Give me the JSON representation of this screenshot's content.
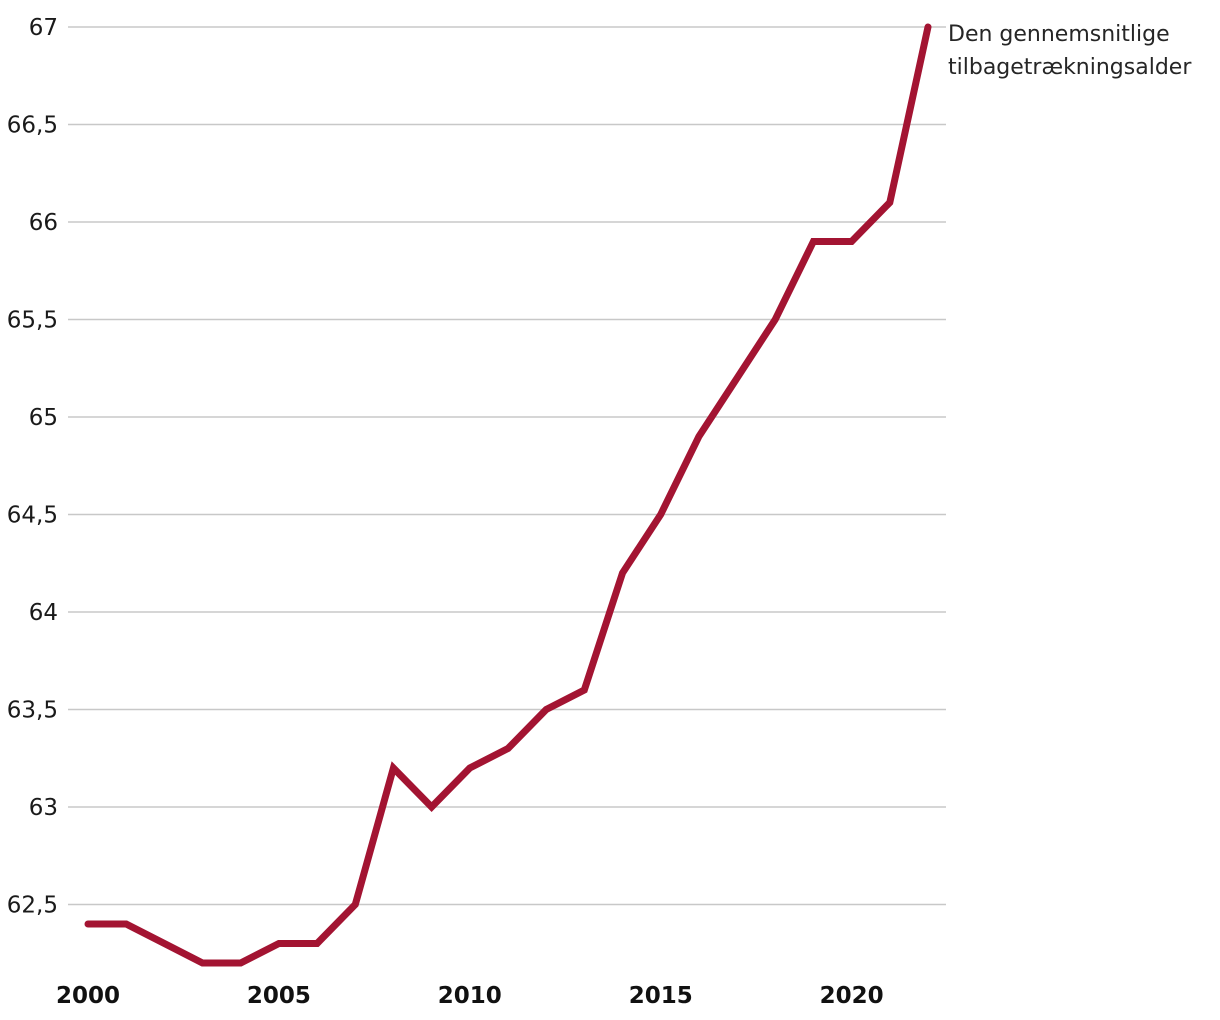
{
  "chart_data": {
    "type": "line",
    "title": "",
    "annotation_lines": [
      "Den gennemsnitlige",
      "tilbagetrækningsalder"
    ],
    "series": [
      {
        "name": "Den gennemsnitlige tilbagetrækningsalder",
        "values": [
          62.4,
          62.4,
          62.3,
          62.2,
          62.2,
          62.3,
          62.3,
          62.5,
          63.2,
          63.0,
          63.2,
          63.3,
          63.5,
          63.6,
          64.2,
          64.5,
          64.9,
          65.2,
          65.5,
          65.9,
          65.9,
          66.1,
          67.0
        ]
      }
    ],
    "x": [
      2000,
      2001,
      2002,
      2003,
      2004,
      2005,
      2006,
      2007,
      2008,
      2009,
      2010,
      2011,
      2012,
      2013,
      2014,
      2015,
      2016,
      2017,
      2018,
      2019,
      2020,
      2021,
      2022
    ],
    "x_ticks": [
      2000,
      2005,
      2010,
      2015,
      2020
    ],
    "x_tick_labels": [
      "2000",
      "2005",
      "2010",
      "2015",
      "2020"
    ],
    "y_ticks": [
      62.5,
      63,
      63.5,
      64,
      64.5,
      65,
      65.5,
      66,
      66.5,
      67
    ],
    "y_tick_labels": [
      "62,5",
      "63",
      "63,5",
      "64",
      "64,5",
      "65",
      "65,5",
      "66",
      "66,5",
      "67"
    ],
    "xlim": [
      2000,
      2022
    ],
    "ylim": [
      62.1,
      67
    ],
    "grid": true,
    "legend_position": "annotation-top-right",
    "colors": {
      "line": "#A31432",
      "grid": "#c8c8c8",
      "y_tick_label": "#1a1a1a",
      "x_tick_label": "#111111",
      "annotation_text": "#262626",
      "background": "#ffffff"
    }
  }
}
